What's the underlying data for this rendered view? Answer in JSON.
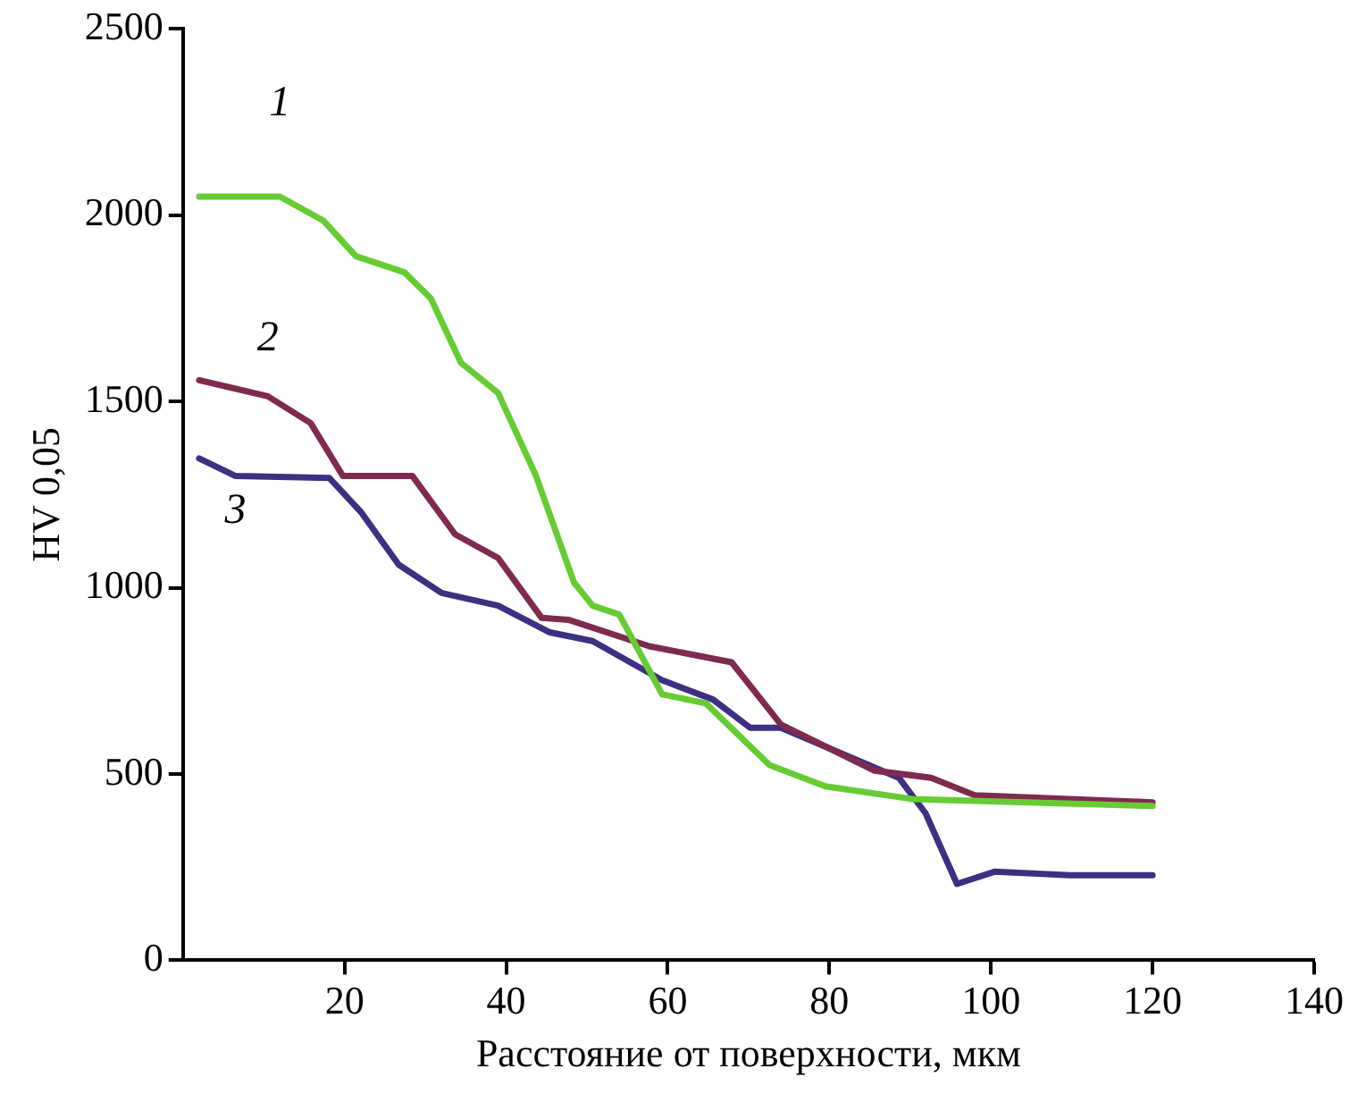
{
  "chart_data": {
    "type": "line",
    "xlabel": "Расстояние от поверхности, мкм",
    "ylabel": "HV 0,05",
    "xlim": [
      0,
      140
    ],
    "xticks": [
      20,
      40,
      60,
      80,
      100,
      120,
      140
    ],
    "ylim": [
      0,
      2500
    ],
    "yticks": [
      0,
      500,
      1000,
      1500,
      2000,
      2500
    ],
    "grid": false,
    "legend": false,
    "marker": "none",
    "line_style": "solid",
    "series": [
      {
        "name": "1",
        "color": "#66cc33",
        "x": [
          2,
          12,
          17.4,
          21.4,
          27.4,
          30.7,
          34.4,
          39,
          43.7,
          48.4,
          50.7,
          54,
          59.3,
          64.7,
          72.6,
          79.5,
          90.2,
          120
        ],
        "values": [
          2050,
          2050,
          1985,
          1890,
          1847,
          1776,
          1604,
          1523,
          1300,
          1014,
          952,
          928,
          714,
          690,
          524,
          467,
          433,
          414
        ]
      },
      {
        "name": "2",
        "color": "#7f2a4f",
        "x": [
          2,
          10.5,
          15.8,
          19.8,
          28.4,
          33.7,
          39,
          44.4,
          47.7,
          57.7,
          67.9,
          74,
          85.6,
          92.6,
          98,
          120
        ],
        "values": [
          1557,
          1514,
          1442,
          1300,
          1300,
          1143,
          1080,
          919,
          914,
          843,
          800,
          633,
          509,
          490,
          443,
          424
        ]
      },
      {
        "name": "3",
        "color": "#3d3080",
        "x": [
          2,
          6.5,
          18.1,
          22,
          26.7,
          32,
          39,
          45.3,
          50.7,
          59.3,
          65.6,
          70.2,
          74,
          88.6,
          91.9,
          95.8,
          100.5,
          109.8,
          120
        ],
        "values": [
          1347,
          1300,
          1295,
          1204,
          1062,
          986,
          952,
          881,
          857,
          752,
          700,
          624,
          624,
          490,
          395,
          205,
          238,
          228,
          228
        ]
      }
    ]
  }
}
